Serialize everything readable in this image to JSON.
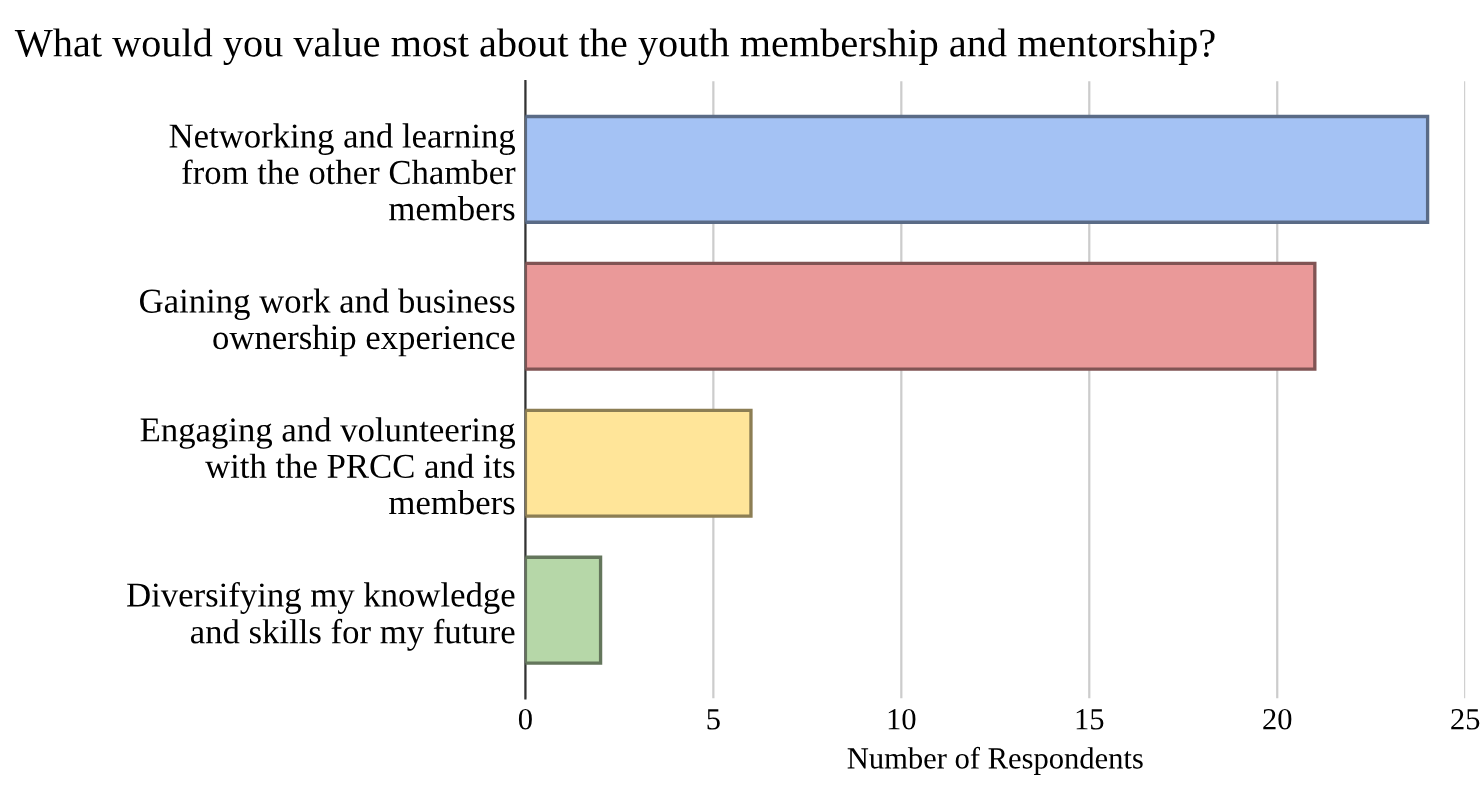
{
  "chart_data": {
    "type": "bar",
    "orientation": "horizontal",
    "title": "What would you value most about the youth membership and mentorship?",
    "categories": [
      "Networking and learning\nfrom the other Chamber\nmembers",
      "Gaining work and business\nownership experience",
      "Engaging and volunteering\nwith the PRCC and its\nmembers",
      "Diversifying my knowledge\nand skills for my future"
    ],
    "values": [
      24,
      21,
      6,
      2
    ],
    "colors": [
      "#a4c2f4",
      "#ea9999",
      "#ffe599",
      "#b6d7a8"
    ],
    "xlabel": "Number of Respondents",
    "xlim": [
      0,
      25
    ],
    "xticks": [
      0,
      5,
      10,
      15,
      20,
      25
    ],
    "grid": "x"
  }
}
